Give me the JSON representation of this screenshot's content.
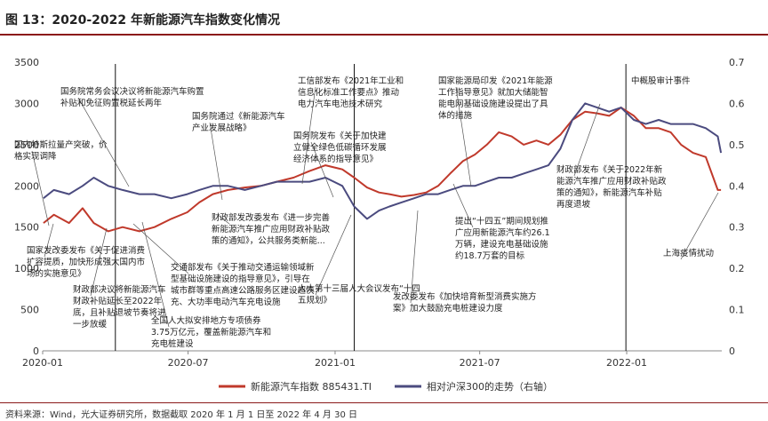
{
  "title": "图 13：2020-2022 年新能源汽车指数变化情况",
  "source": "资料来源：Wind，光大证券研究所，数据截取 2020 年 1 月 1 日至 2022 年 4 月 30 日",
  "colors": {
    "index": "#c0392b",
    "hs300": "#4b4b7f",
    "rule": "#8b1a1a"
  },
  "chart_data": {
    "type": "line",
    "x_ticks": [
      "2020-01",
      "2020-07",
      "2021-01",
      "2021-07",
      "2022-01"
    ],
    "x_range": [
      "2020-01-01",
      "2022-04-30"
    ],
    "y_left": {
      "ticks": [
        "0",
        "500",
        "1000",
        "1500",
        "2000",
        "2500",
        "3000",
        "3500"
      ],
      "range": [
        0,
        3500
      ]
    },
    "y_right": {
      "ticks": [
        "0",
        "0.1",
        "0.2",
        "0.3",
        "0.4",
        "0.5",
        "0.6",
        "0.7"
      ],
      "range": [
        0,
        0.7
      ]
    },
    "grid": false,
    "legend_position": "bottom",
    "series": [
      {
        "name": "新能源汽车指数 885431.TI",
        "axis": "left",
        "x": [
          "2020-01-02",
          "2020-01-15",
          "2020-02-03",
          "2020-02-20",
          "2020-03-05",
          "2020-03-23",
          "2020-04-10",
          "2020-05-01",
          "2020-05-20",
          "2020-06-10",
          "2020-06-30",
          "2020-07-15",
          "2020-08-01",
          "2020-08-20",
          "2020-09-10",
          "2020-09-30",
          "2020-10-20",
          "2020-11-10",
          "2020-11-30",
          "2020-12-20",
          "2021-01-10",
          "2021-01-25",
          "2021-02-10",
          "2021-02-25",
          "2021-03-10",
          "2021-03-25",
          "2021-04-10",
          "2021-04-25",
          "2021-05-10",
          "2021-05-25",
          "2021-06-10",
          "2021-06-25",
          "2021-07-10",
          "2021-07-25",
          "2021-08-10",
          "2021-08-25",
          "2021-09-10",
          "2021-09-25",
          "2021-10-10",
          "2021-10-25",
          "2021-11-10",
          "2021-11-25",
          "2021-12-10",
          "2021-12-25",
          "2022-01-10",
          "2022-01-25",
          "2022-02-10",
          "2022-02-25",
          "2022-03-10",
          "2022-03-25",
          "2022-04-10",
          "2022-04-25",
          "2022-04-29"
        ],
        "values": [
          1550,
          1650,
          1550,
          1730,
          1550,
          1450,
          1500,
          1450,
          1500,
          1600,
          1680,
          1800,
          1900,
          1950,
          1980,
          2000,
          2050,
          2100,
          2180,
          2250,
          2200,
          2100,
          1980,
          1920,
          1900,
          1870,
          1890,
          1920,
          2000,
          2150,
          2300,
          2380,
          2500,
          2650,
          2600,
          2500,
          2550,
          2500,
          2620,
          2800,
          2900,
          2880,
          2850,
          2950,
          2850,
          2700,
          2700,
          2650,
          2500,
          2400,
          2350,
          1950,
          1950
        ]
      },
      {
        "name": "相对沪深300的走势（右轴）",
        "axis": "right",
        "x": [
          "2020-01-02",
          "2020-01-15",
          "2020-02-03",
          "2020-02-20",
          "2020-03-05",
          "2020-03-23",
          "2020-04-10",
          "2020-05-01",
          "2020-05-20",
          "2020-06-10",
          "2020-06-30",
          "2020-07-15",
          "2020-08-01",
          "2020-08-20",
          "2020-09-10",
          "2020-09-30",
          "2020-10-20",
          "2020-11-10",
          "2020-11-30",
          "2020-12-20",
          "2021-01-10",
          "2021-01-25",
          "2021-02-10",
          "2021-02-25",
          "2021-03-10",
          "2021-03-25",
          "2021-04-10",
          "2021-04-25",
          "2021-05-10",
          "2021-05-25",
          "2021-06-10",
          "2021-06-25",
          "2021-07-10",
          "2021-07-25",
          "2021-08-10",
          "2021-08-25",
          "2021-09-10",
          "2021-09-25",
          "2021-10-10",
          "2021-10-25",
          "2021-11-10",
          "2021-11-25",
          "2021-12-10",
          "2021-12-25",
          "2022-01-10",
          "2022-01-25",
          "2022-02-10",
          "2022-02-25",
          "2022-03-10",
          "2022-03-25",
          "2022-04-10",
          "2022-04-25",
          "2022-04-29"
        ],
        "values": [
          0.37,
          0.39,
          0.38,
          0.4,
          0.42,
          0.4,
          0.39,
          0.38,
          0.38,
          0.37,
          0.38,
          0.39,
          0.4,
          0.4,
          0.39,
          0.4,
          0.41,
          0.41,
          0.41,
          0.42,
          0.4,
          0.35,
          0.32,
          0.34,
          0.35,
          0.36,
          0.37,
          0.38,
          0.38,
          0.39,
          0.4,
          0.4,
          0.41,
          0.42,
          0.42,
          0.43,
          0.44,
          0.45,
          0.49,
          0.56,
          0.6,
          0.59,
          0.58,
          0.59,
          0.56,
          0.55,
          0.56,
          0.55,
          0.55,
          0.55,
          0.54,
          0.52,
          0.48
        ]
      }
    ],
    "annotations": [
      {
        "id": "a1",
        "lines": [
          "国务院常务会议决议将新能源汽车购置",
          "补贴和免征购置税延长两年"
        ]
      },
      {
        "id": "a2",
        "lines": [
          "国务院通过《新能源汽车",
          "产业发展战略》"
        ]
      },
      {
        "id": "a3",
        "lines": [
          "工信部发布《2021年工业和",
          "信息化标准工作要点》推动",
          "电力汽车电池技术研究"
        ]
      },
      {
        "id": "a4",
        "lines": [
          "国家能源局印发《2021年能源",
          "工作指导意见》就加大储能智",
          "能电网基础设施建设提出了具",
          "体的措施"
        ]
      },
      {
        "id": "a5",
        "lines": [
          "中概股审计事件"
        ]
      },
      {
        "id": "a6",
        "lines": [
          "国务院发布《关于加快建",
          "立健全绿色低碳循环发展",
          "经济体系的指导意见》"
        ]
      },
      {
        "id": "a7",
        "lines": [
          "国内特斯拉量产突破，价",
          "格实现调降"
        ]
      },
      {
        "id": "a8",
        "lines": [
          "财政部发布《关于2022年新",
          "能源汽车推广应用财政补贴政",
          "策的通知》，新能源汽车补贴",
          "再度退坡"
        ]
      },
      {
        "id": "a9",
        "lines": [
          "财政部发改委发布《进一步完善",
          "新能源汽车推广应用财政补贴政",
          "策的通知》，公共服务类新能..."
        ]
      },
      {
        "id": "a10",
        "lines": [
          "提出“十四五”期间规划推",
          "广应用新能源汽车约26.1",
          "万辆，建设充电基础设施",
          "约18.7万套的目标"
        ]
      },
      {
        "id": "a11",
        "lines": [
          "上海疫情扰动"
        ]
      },
      {
        "id": "a12",
        "lines": [
          "国家发改委发布《关于促进消费",
          "扩容提质，加快形成强大国内市",
          "场的实施意见》"
        ]
      },
      {
        "id": "a13",
        "lines": [
          "交通部发布《关于推动交通运输领域新",
          "型基础设施建设的指导意见》，引导在",
          "城市群等重点高速公路服务区建设超快",
          "充、大功率电动汽车充电设施"
        ]
      },
      {
        "id": "a14",
        "lines": [
          "人大第十三届人大会议发布“十四",
          "五规划》"
        ]
      },
      {
        "id": "a15",
        "lines": [
          "发改委发布《加快培育新型消费实施方",
          "案》加大鼓励充电桩建设力度"
        ]
      },
      {
        "id": "a16",
        "lines": [
          "财政部决议将新能源汽车",
          "财政补贴延长至2022年",
          "底，且补贴退坡节奏将进",
          "一步放缓"
        ]
      },
      {
        "id": "a17",
        "lines": [
          "全国人大拟安排地方专项债券",
          "3.75万亿元，覆盖新能源汽车和",
          "充电桩建设"
        ]
      }
    ]
  }
}
